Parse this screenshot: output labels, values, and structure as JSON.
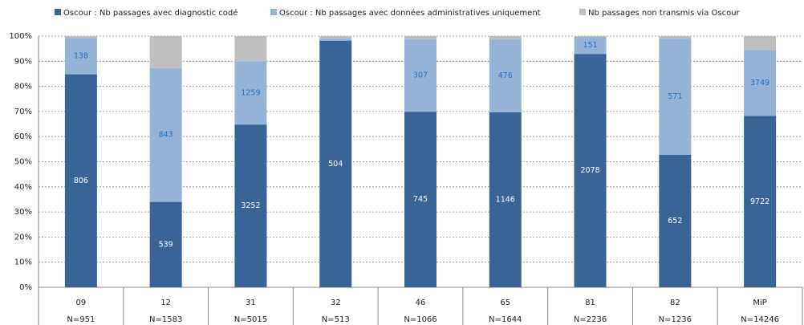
{
  "chart_data": {
    "type": "stacked_bar_100",
    "categories": [
      "09",
      "12",
      "31",
      "32",
      "46",
      "65",
      "81",
      "82",
      "MiP"
    ],
    "category_totals": [
      "N=951",
      "N=1583",
      "N=5015",
      "N=513",
      "N=1066",
      "N=1644",
      "N=2236",
      "N=1236",
      "N=14246"
    ],
    "series": [
      {
        "name": "Oscour : Nb passages avec diagnostic codé",
        "color": "#3b6496",
        "values": [
          84.8,
          34.0,
          64.8,
          98.2,
          69.9,
          69.7,
          92.9,
          52.8,
          68.2
        ],
        "counts": [
          806,
          539,
          3252,
          504,
          745,
          1146,
          2078,
          652,
          9722
        ],
        "label_color": "#ffffff"
      },
      {
        "name": "Oscour : Nb passages avec données administratives uniquement",
        "color": "#95b3d7",
        "values": [
          14.5,
          53.3,
          25.1,
          0.8,
          28.8,
          29.0,
          6.8,
          46.2,
          26.3
        ],
        "counts": [
          138,
          843,
          1259,
          null,
          307,
          476,
          151,
          571,
          3749
        ],
        "label_color": "#1f6fc5"
      },
      {
        "name": "Nb passages  non transmis via Oscour",
        "color": "#bfbfbf",
        "values": [
          0.7,
          12.7,
          10.1,
          1.0,
          1.3,
          1.3,
          0.3,
          1.0,
          5.5
        ]
      }
    ],
    "ylim": [
      0,
      100
    ],
    "yticks": [
      {
        "value": 0,
        "label": "0%"
      },
      {
        "value": 10,
        "label": "10%"
      },
      {
        "value": 20,
        "label": "20%"
      },
      {
        "value": 30,
        "label": "30%"
      },
      {
        "value": 40,
        "label": "40%"
      },
      {
        "value": 50,
        "label": "50%"
      },
      {
        "value": 60,
        "label": "60%"
      },
      {
        "value": 70,
        "label": "70%"
      },
      {
        "value": 80,
        "label": "80%"
      },
      {
        "value": 90,
        "label": "90%"
      },
      {
        "value": 100,
        "label": "100%"
      }
    ],
    "grid": true,
    "legend": "top"
  }
}
